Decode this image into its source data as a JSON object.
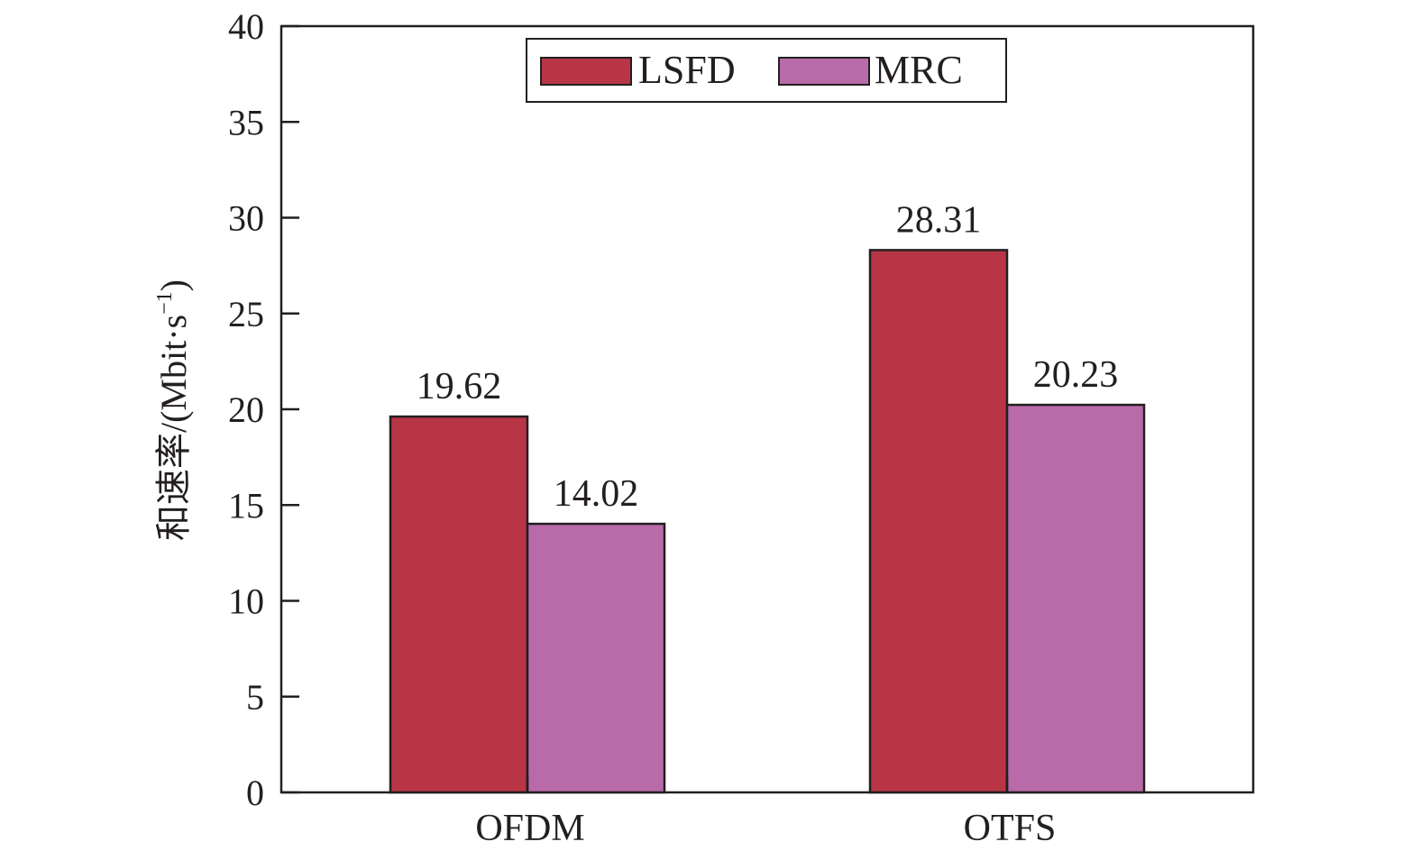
{
  "chart_data": {
    "type": "bar",
    "categories": [
      "OFDM",
      "OTFS"
    ],
    "series": [
      {
        "name": "LSFD",
        "values": [
          19.62,
          28.31
        ],
        "labels": [
          "19.62",
          "28.31"
        ],
        "color": "#b83545"
      },
      {
        "name": "MRC",
        "values": [
          14.02,
          20.23
        ],
        "labels": [
          "14.02",
          "20.23"
        ],
        "color": "#b86ba8"
      }
    ],
    "ylabel": "和速率/(Mbit·s",
    "ylabel_superscript": "−1",
    "ylabel_close": ")",
    "xlabel": "",
    "ylim": [
      0,
      40
    ],
    "yticks": [
      0,
      5,
      10,
      15,
      20,
      25,
      30,
      35,
      40
    ],
    "ytick_labels": [
      "0",
      "5",
      "10",
      "15",
      "20",
      "25",
      "30",
      "35",
      "40"
    ],
    "grid": false,
    "legend_position": "top-center"
  }
}
